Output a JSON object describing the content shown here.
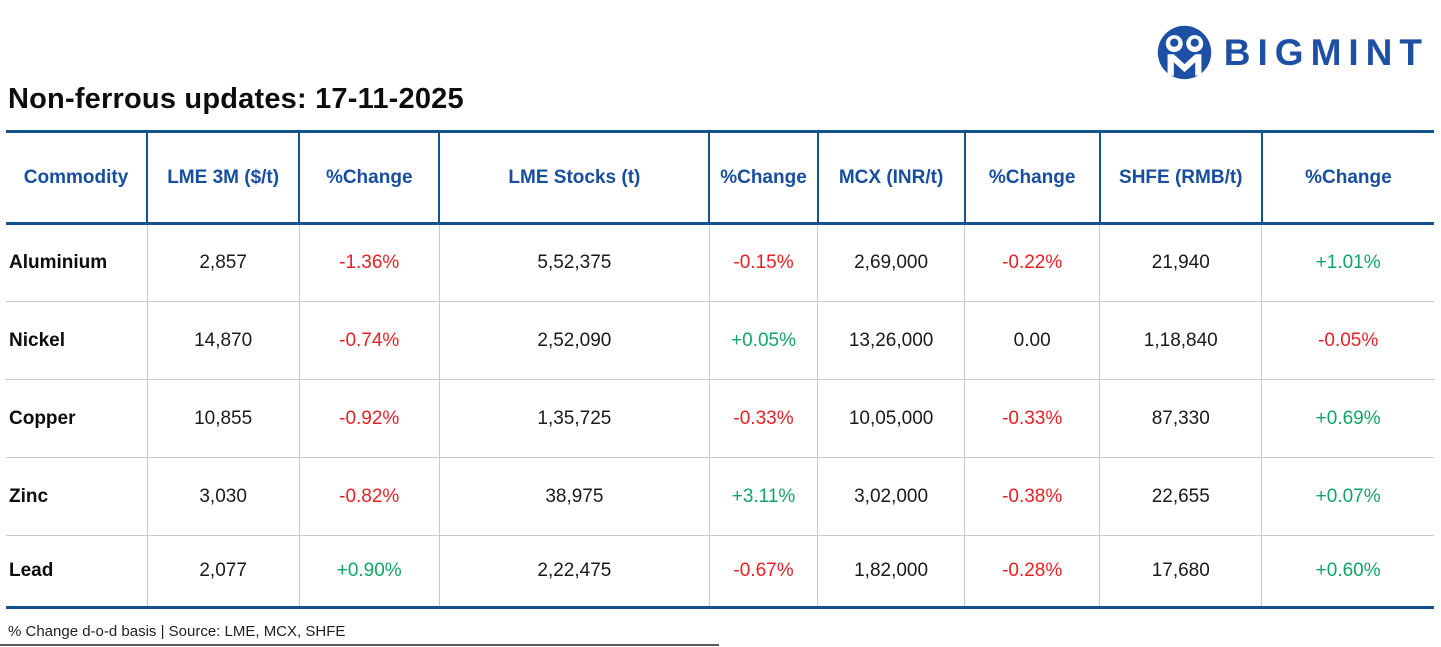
{
  "logo": {
    "brand": "BIGMINT"
  },
  "chart_data": {
    "type": "table",
    "title": "Non-ferrous updates: 17-11-2025",
    "columns": [
      "Commodity",
      "LME 3M ($/t)",
      "%Change",
      "LME Stocks (t)",
      "%Change",
      "MCX (INR/t)",
      "%Change",
      "SHFE (RMB/t)",
      "%Change"
    ],
    "rows": [
      {
        "commodity": "Aluminium",
        "cells": [
          {
            "text": "2,857",
            "tone": "neutral"
          },
          {
            "text": "-1.36%",
            "tone": "neg"
          },
          {
            "text": "5,52,375",
            "tone": "neutral"
          },
          {
            "text": "-0.15%",
            "tone": "neg"
          },
          {
            "text": "2,69,000",
            "tone": "neutral"
          },
          {
            "text": "-0.22%",
            "tone": "neg"
          },
          {
            "text": "21,940",
            "tone": "neutral"
          },
          {
            "text": "+1.01%",
            "tone": "pos"
          }
        ]
      },
      {
        "commodity": "Nickel",
        "cells": [
          {
            "text": "14,870",
            "tone": "neutral"
          },
          {
            "text": "-0.74%",
            "tone": "neg"
          },
          {
            "text": "2,52,090",
            "tone": "neutral"
          },
          {
            "text": "+0.05%",
            "tone": "pos"
          },
          {
            "text": "13,26,000",
            "tone": "neutral"
          },
          {
            "text": "0.00",
            "tone": "neutral"
          },
          {
            "text": "1,18,840",
            "tone": "neutral"
          },
          {
            "text": "-0.05%",
            "tone": "neg"
          }
        ]
      },
      {
        "commodity": "Copper",
        "cells": [
          {
            "text": "10,855",
            "tone": "neutral"
          },
          {
            "text": "-0.92%",
            "tone": "neg"
          },
          {
            "text": "1,35,725",
            "tone": "neutral"
          },
          {
            "text": "-0.33%",
            "tone": "neg"
          },
          {
            "text": "10,05,000",
            "tone": "neutral"
          },
          {
            "text": "-0.33%",
            "tone": "neg"
          },
          {
            "text": "87,330",
            "tone": "neutral"
          },
          {
            "text": "+0.69%",
            "tone": "pos"
          }
        ]
      },
      {
        "commodity": "Zinc",
        "cells": [
          {
            "text": "3,030",
            "tone": "neutral"
          },
          {
            "text": "-0.82%",
            "tone": "neg"
          },
          {
            "text": "38,975",
            "tone": "neutral"
          },
          {
            "text": "+3.11%",
            "tone": "pos"
          },
          {
            "text": "3,02,000",
            "tone": "neutral"
          },
          {
            "text": "-0.38%",
            "tone": "neg"
          },
          {
            "text": "22,655",
            "tone": "neutral"
          },
          {
            "text": "+0.07%",
            "tone": "pos"
          }
        ]
      },
      {
        "commodity": "Lead",
        "cells": [
          {
            "text": "2,077",
            "tone": "neutral"
          },
          {
            "text": "+0.90%",
            "tone": "pos"
          },
          {
            "text": "2,22,475",
            "tone": "neutral"
          },
          {
            "text": "-0.67%",
            "tone": "neg"
          },
          {
            "text": "1,82,000",
            "tone": "neutral"
          },
          {
            "text": "-0.28%",
            "tone": "neg"
          },
          {
            "text": "17,680",
            "tone": "neutral"
          },
          {
            "text": "+0.60%",
            "tone": "pos"
          }
        ]
      }
    ],
    "footnote": "% Change d-o-d basis | Source: LME, MCX, SHFE"
  },
  "colors": {
    "brand_blue": "#1d50a5",
    "header_blue": "#174e9e",
    "border_blue": "#15538f",
    "negative_red": "#e81e25",
    "positive_green": "#10a564"
  }
}
